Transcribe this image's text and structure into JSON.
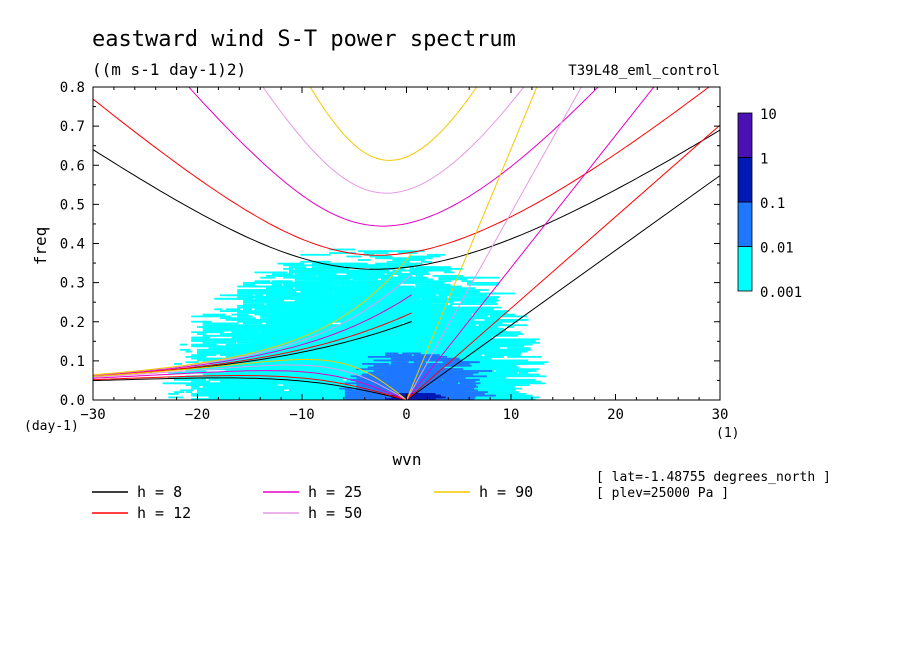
{
  "chart_data": {
    "type": "heatmap",
    "title": "eastward wind S-T power spectrum",
    "subtitle": "((m s-1 day-1)2)",
    "experiment": "T39L48_eml_control",
    "xlabel": "wvn",
    "ylabel": "freq",
    "x_unit": "(1)",
    "y_unit": "(day-1)",
    "xlim": [
      -30,
      30
    ],
    "ylim": [
      0,
      0.8
    ],
    "x_ticks": [
      -30,
      -20,
      -10,
      0,
      10,
      20,
      30
    ],
    "y_ticks": [
      0.0,
      0.1,
      0.2,
      0.3,
      0.4,
      0.5,
      0.6,
      0.7,
      0.8
    ],
    "colorbar": {
      "levels": [
        "0.001",
        "0.01",
        "0.1",
        "1",
        "10"
      ],
      "colors": [
        "#00ffff",
        "#1e78ff",
        "#0019b4",
        "#4a12b4"
      ]
    },
    "power_regions": [
      {
        "level": 1,
        "note": "0.001-0.01",
        "x": [
          -25,
          17
        ],
        "y": [
          0.0,
          0.4
        ]
      },
      {
        "level": 2,
        "note": "0.01-0.1",
        "x": [
          -7,
          6
        ],
        "y": [
          0.0,
          0.13
        ]
      },
      {
        "level": 3,
        "note": "0.1-1",
        "x": [
          -2,
          2
        ],
        "y": [
          0.0,
          0.02
        ]
      }
    ],
    "dispersion_curves": [
      {
        "name": "h =  8",
        "h": 8,
        "color": "#000000"
      },
      {
        "name": "h = 12",
        "h": 12,
        "color": "#ff0000"
      },
      {
        "name": "h = 25",
        "h": 25,
        "color": "#e600c8"
      },
      {
        "name": "h = 50",
        "h": 50,
        "color": "#e699e6"
      },
      {
        "name": "h = 90",
        "h": 90,
        "color": "#f5c800"
      }
    ],
    "info": [
      "[ lat=-1.48755 degrees_north ]",
      "[ plev=25000 Pa ]"
    ]
  }
}
